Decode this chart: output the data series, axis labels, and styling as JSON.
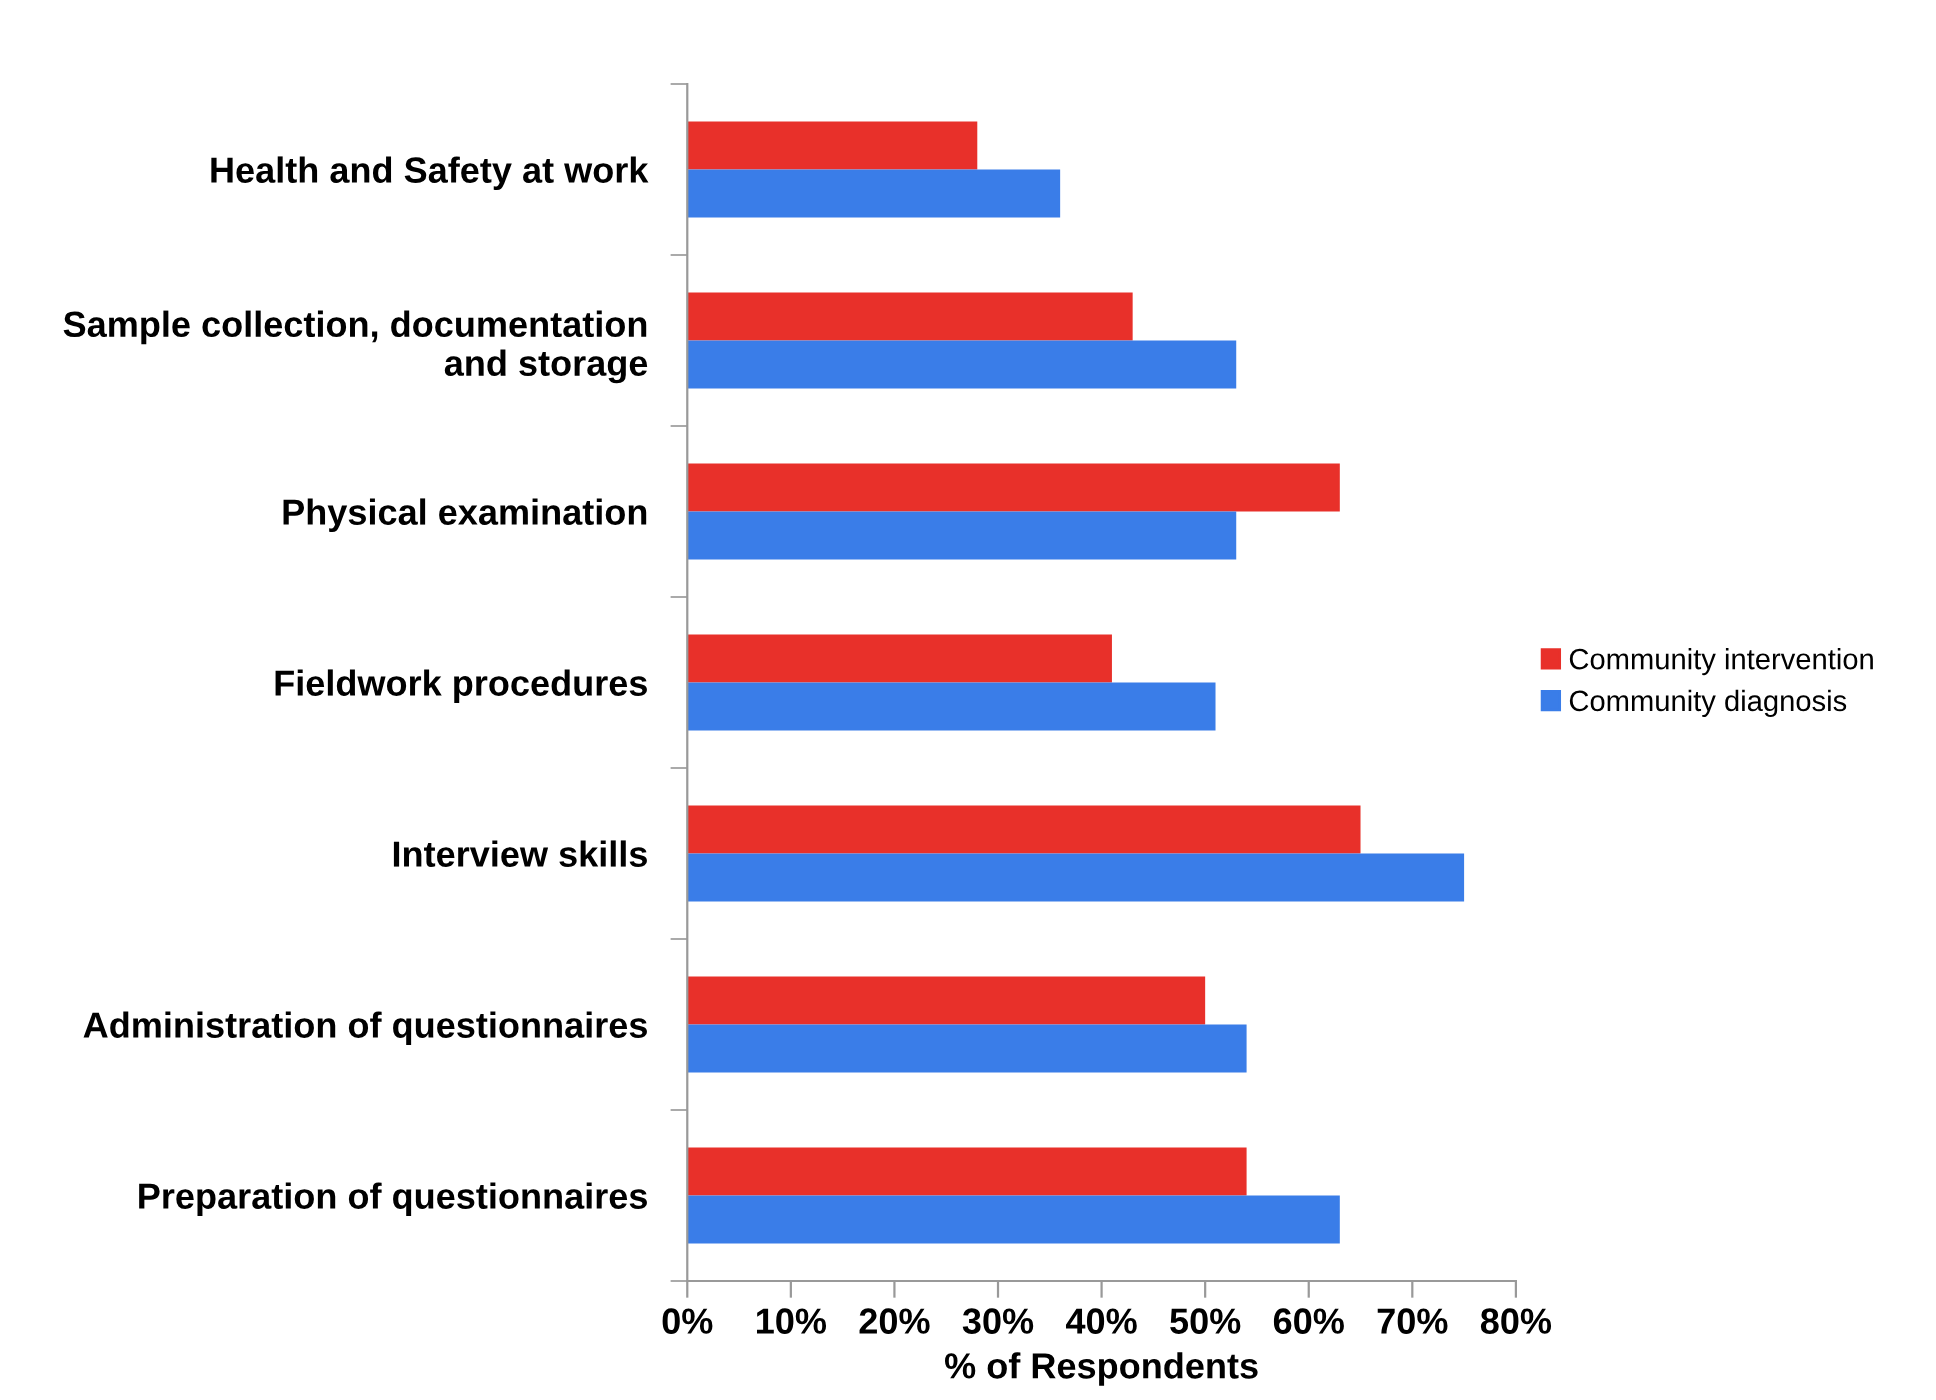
{
  "chart_data": {
    "type": "bar",
    "orientation": "horizontal",
    "xlabel": "% of Respondents",
    "categories": [
      "Health and Safety at work",
      "Sample collection, documentation and storage",
      "Physical examination",
      "Fieldwork procedures",
      "Interview skills",
      "Administration of questionnaires",
      "Preparation of questionnaires"
    ],
    "series": [
      {
        "name": "Community intervention",
        "color": "#e8302a",
        "values": [
          28,
          43,
          63,
          41,
          65,
          50,
          54
        ]
      },
      {
        "name": "Community diagnosis",
        "color": "#3a7de8",
        "values": [
          36,
          53,
          53,
          51,
          75,
          54,
          63
        ]
      }
    ],
    "xlim": [
      0,
      80
    ],
    "xticks": [
      {
        "value": 0,
        "label": "0%"
      },
      {
        "value": 10,
        "label": "10%"
      },
      {
        "value": 20,
        "label": "20%"
      },
      {
        "value": 30,
        "label": "30%"
      },
      {
        "value": 40,
        "label": "40%"
      },
      {
        "value": 50,
        "label": "50%"
      },
      {
        "value": 60,
        "label": "60%"
      },
      {
        "value": 70,
        "label": "70%"
      },
      {
        "value": 80,
        "label": "80%"
      }
    ],
    "grid": false,
    "legend": "right"
  }
}
